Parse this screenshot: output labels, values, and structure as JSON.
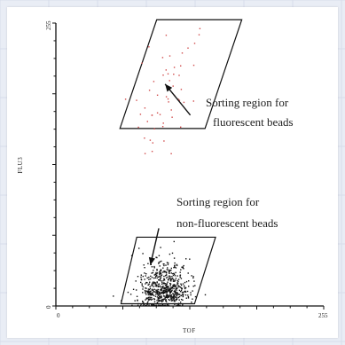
{
  "chart_data": {
    "type": "scatter",
    "title": "",
    "xlabel": "TOF",
    "ylabel": "FLU3",
    "xlim": [
      0,
      255
    ],
    "ylim": [
      0,
      255
    ],
    "x_ticks": [
      "0",
      "255"
    ],
    "y_ticks": [
      "0",
      "255"
    ],
    "grid": false,
    "series": [
      {
        "name": "",
        "color": "#d04a4a",
        "cluster": {
          "x_center": 105,
          "y_center": 195,
          "x_spread": 14,
          "y_spread": 28,
          "count": 55,
          "tilt": 0.22,
          "skew": 0.2
        }
      },
      {
        "name": "",
        "color": "#111111",
        "cluster": {
          "x_center": 103,
          "y_center": 14,
          "x_spread": 12,
          "y_spread": 9,
          "count": 650,
          "tilt": 0,
          "skew": 0.55
        }
      }
    ],
    "regions": [
      {
        "label": "fluorescent",
        "polygon": [
          [
            61,
            160
          ],
          [
            142,
            160
          ],
          [
            177,
            258
          ],
          [
            96,
            258
          ]
        ]
      },
      {
        "label": "non-fluorescent",
        "polygon": [
          [
            62,
            2
          ],
          [
            132,
            2
          ],
          [
            152,
            62
          ],
          [
            77,
            62
          ]
        ]
      }
    ],
    "annotations": [
      {
        "lines": [
          "Sorting region for",
          "fluorescent beads"
        ],
        "arrow_from": [
          128,
          172
        ],
        "arrow_to": [
          104,
          200
        ]
      },
      {
        "lines": [
          "Sorting region for",
          "non-fluorescent beads"
        ],
        "arrow_from": [
          98,
          70
        ],
        "arrow_to": [
          90,
          37
        ]
      }
    ]
  }
}
